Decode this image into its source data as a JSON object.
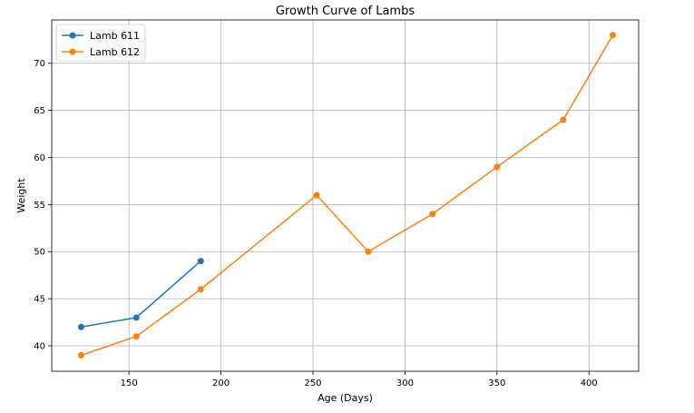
{
  "chart_data": {
    "type": "line",
    "title": "Growth Curve of Lambs",
    "xlabel": "Age (Days)",
    "ylabel": "Weight",
    "xlim": [
      108,
      427
    ],
    "ylim": [
      37.3,
      74.6
    ],
    "xticks": [
      150,
      200,
      250,
      300,
      350,
      400
    ],
    "yticks": [
      40,
      45,
      50,
      55,
      60,
      65,
      70
    ],
    "grid": true,
    "legend_position": "top-left",
    "series": [
      {
        "name": "Lamb 611",
        "color": "#1f77b4",
        "marker": "circle",
        "x": [
          124,
          154,
          189
        ],
        "y": [
          42,
          43,
          49
        ]
      },
      {
        "name": "Lamb 612",
        "color": "#ff7f0e",
        "marker": "circle",
        "x": [
          124,
          154,
          189,
          252,
          280,
          315,
          350,
          386,
          413
        ],
        "y": [
          39,
          41,
          46,
          56,
          50,
          54,
          59,
          64,
          73
        ]
      }
    ]
  }
}
